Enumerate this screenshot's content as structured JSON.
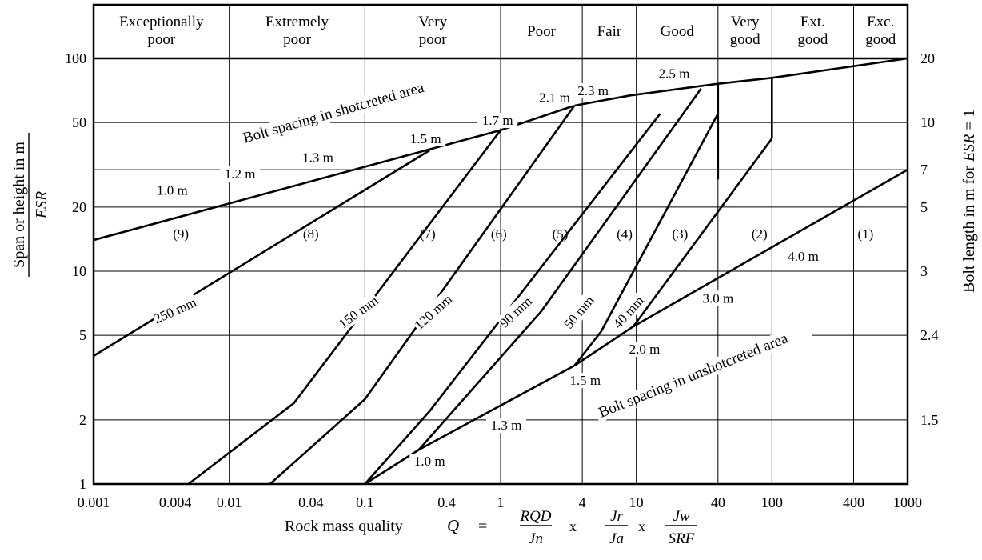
{
  "chart_data": {
    "type": "line",
    "x_scale": "log",
    "y_scale": "log",
    "xlim": [
      0.001,
      1000
    ],
    "ylim": [
      1,
      100
    ],
    "grid": true,
    "x_ticks": [
      "0.001",
      "0.004",
      "0.01",
      "0.04",
      "0.1",
      "0.4",
      "1",
      "4",
      "10",
      "40",
      "100",
      "400",
      "1000"
    ],
    "y_ticks_left": [
      "1",
      "2",
      "5",
      "10",
      "20",
      "50",
      "100"
    ],
    "y_ticks_right": [
      "1.5",
      "2.4",
      "3",
      "5",
      "7",
      "10",
      "20"
    ],
    "xlabel": {
      "prefix": "Rock mass quality",
      "Q": "Q",
      "eq": "=",
      "times": "x",
      "f1_num": "RQD",
      "f1_den": "Jn",
      "f2_num": "Jr",
      "f2_den": "Ja",
      "f3_num": "Jw",
      "f3_den": "SRF"
    },
    "ylabel_left": {
      "top": "Span or height in m",
      "bottom": "ESR"
    },
    "ylabel_right": {
      "main": "Bolt length in m for",
      "esr": "ESR",
      "tail": "= 1"
    },
    "quality_classes": [
      {
        "lines": [
          "Exceptionally",
          "poor"
        ]
      },
      {
        "lines": [
          "Extremely",
          "poor"
        ]
      },
      {
        "lines": [
          "Very",
          "poor"
        ]
      },
      {
        "lines": [
          "Poor"
        ]
      },
      {
        "lines": [
          "Fair"
        ]
      },
      {
        "lines": [
          "Good"
        ]
      },
      {
        "lines": [
          "Very",
          "good"
        ]
      },
      {
        "lines": [
          "Ext.",
          "good"
        ]
      },
      {
        "lines": [
          "Exc.",
          "good"
        ]
      }
    ],
    "quality_class_bounds_Q": [
      0.001,
      0.01,
      0.1,
      1,
      4,
      10,
      40,
      100,
      400,
      1000
    ],
    "series": [
      {
        "points": [
          [
            0.001,
            14
          ],
          [
            1,
            46
          ],
          [
            3.5,
            60
          ],
          [
            9,
            67
          ],
          [
            40,
            76
          ],
          [
            100,
            81
          ],
          [
            1000,
            100
          ]
        ]
      },
      {
        "points": [
          [
            0.1,
            1
          ],
          [
            0.25,
            1.45
          ],
          [
            3.5,
            3.6
          ],
          [
            9.5,
            5.5
          ],
          [
            1000,
            30
          ]
        ]
      },
      {
        "points": [
          [
            0.001,
            4
          ],
          [
            0.3,
            37
          ]
        ]
      },
      {
        "points": [
          [
            0.005,
            1
          ],
          [
            0.03,
            2.4
          ],
          [
            1,
            46
          ]
        ]
      },
      {
        "points": [
          [
            0.02,
            1
          ],
          [
            0.1,
            2.5
          ],
          [
            3.5,
            60
          ]
        ]
      },
      {
        "points": [
          [
            0.1,
            1
          ],
          [
            0.3,
            2.2
          ],
          [
            15,
            55
          ]
        ]
      },
      {
        "points": [
          [
            0.25,
            1.45
          ],
          [
            2,
            6.5
          ],
          [
            30,
            72
          ]
        ]
      },
      {
        "points": [
          [
            3.5,
            3.6
          ],
          [
            5.5,
            5.2
          ],
          [
            40,
            55
          ]
        ]
      },
      {
        "points": [
          [
            9.5,
            5.5
          ],
          [
            100,
            42
          ]
        ]
      },
      {
        "points": [
          [
            40,
            27
          ],
          [
            40,
            76
          ]
        ]
      },
      {
        "points": [
          [
            100,
            42
          ],
          [
            100,
            81
          ]
        ]
      }
    ],
    "band_labels": [
      {
        "text": "(9)",
        "x": 0.0044,
        "y": 15
      },
      {
        "text": "(8)",
        "x": 0.04,
        "y": 15
      },
      {
        "text": "(7)",
        "x": 0.29,
        "y": 15
      },
      {
        "text": "(6)",
        "x": 0.97,
        "y": 15
      },
      {
        "text": "(5)",
        "x": 2.75,
        "y": 15
      },
      {
        "text": "(4)",
        "x": 8.2,
        "y": 15
      },
      {
        "text": "(3)",
        "x": 21,
        "y": 15
      },
      {
        "text": "(2)",
        "x": 81,
        "y": 15
      },
      {
        "text": "(1)",
        "x": 490,
        "y": 15
      }
    ],
    "shotcrete_labels": [
      {
        "text": "250 mm",
        "x": 0.004,
        "y": 6.5,
        "angle": -24
      },
      {
        "text": "150 mm",
        "x": 0.09,
        "y": 6.4,
        "angle": -36
      },
      {
        "text": "120 mm",
        "x": 0.32,
        "y": 6.4,
        "angle": -42
      },
      {
        "text": "90 mm",
        "x": 1.3,
        "y": 6.4,
        "angle": -43
      },
      {
        "text": "50 mm",
        "x": 3.8,
        "y": 6.4,
        "angle": -50
      },
      {
        "text": "40 mm",
        "x": 8.8,
        "y": 6.4,
        "angle": -48
      }
    ],
    "spacing_labels_shotcreted": [
      {
        "text": "1.0 m",
        "x": 0.0038,
        "y": 23.5
      },
      {
        "text": "1.2 m",
        "x": 0.012,
        "y": 28
      },
      {
        "text": "1.3 m",
        "x": 0.045,
        "y": 33.5
      },
      {
        "text": "1.5 m",
        "x": 0.28,
        "y": 41
      },
      {
        "text": "1.7 m",
        "x": 0.95,
        "y": 50
      },
      {
        "text": "2.1 m",
        "x": 2.5,
        "y": 64
      },
      {
        "text": "2.3 m",
        "x": 4.8,
        "y": 69
      },
      {
        "text": "2.5 m",
        "x": 19,
        "y": 83
      }
    ],
    "spacing_labels_unshotcreted": [
      {
        "text": "1.0 m",
        "x": 0.3,
        "y": 1.25
      },
      {
        "text": "1.3 m",
        "x": 1.1,
        "y": 1.85
      },
      {
        "text": "1.5 m",
        "x": 4.2,
        "y": 3.0
      },
      {
        "text": "2.0 m",
        "x": 11.5,
        "y": 4.2
      },
      {
        "text": "3.0 m",
        "x": 40,
        "y": 7.3
      },
      {
        "text": "4.0 m",
        "x": 170,
        "y": 11.5
      }
    ],
    "line_captions": [
      {
        "text": "Bolt spacing in shotcreted area",
        "x": 0.013,
        "y": 40,
        "angle": -16
      },
      {
        "text": "Bolt spacing in unshotcreted area",
        "x": 5.5,
        "y": 2.05,
        "angle": -22
      }
    ]
  }
}
